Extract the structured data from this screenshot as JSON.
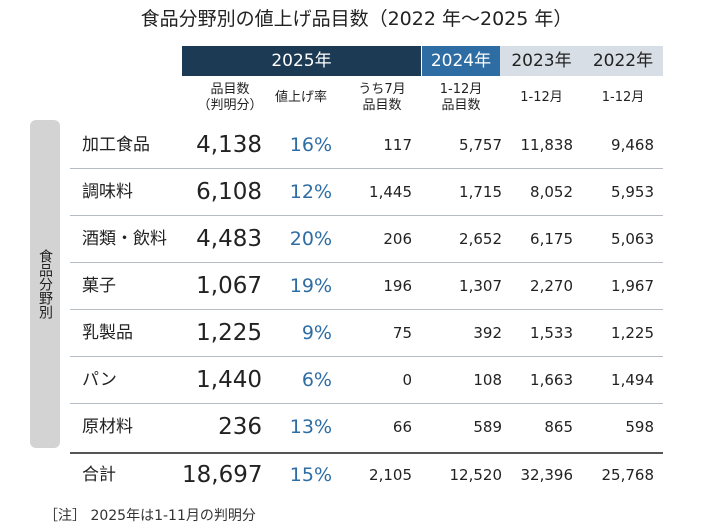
{
  "title": "食品分野別の値上げ品目数（2022 年～2025 年）",
  "chart_data": {
    "type": "table",
    "year_headers": [
      "2025年",
      "2024年",
      "2023年",
      "2022年"
    ],
    "columns": [
      {
        "line1": "品目数",
        "line2": "（判明分）"
      },
      {
        "line1": "値上げ率",
        "line2": ""
      },
      {
        "line1": "うち7月",
        "line2": "品目数"
      },
      {
        "line1": "1-12月",
        "line2": "品目数"
      },
      {
        "line1": "1-12月",
        "line2": ""
      },
      {
        "line1": "1-12月",
        "line2": ""
      }
    ],
    "side_label": "食品分野別",
    "rows": [
      {
        "category": "加工食品",
        "count_2025": "4,138",
        "rate_2025": "16%",
        "july_2025": "117",
        "total_2024": "5,757",
        "total_2023": "11,838",
        "total_2022": "9,468"
      },
      {
        "category": "調味料",
        "count_2025": "6,108",
        "rate_2025": "12%",
        "july_2025": "1,445",
        "total_2024": "1,715",
        "total_2023": "8,052",
        "total_2022": "5,953"
      },
      {
        "category": "酒類・飲料",
        "count_2025": "4,483",
        "rate_2025": "20%",
        "july_2025": "206",
        "total_2024": "2,652",
        "total_2023": "6,175",
        "total_2022": "5,063"
      },
      {
        "category": "菓子",
        "count_2025": "1,067",
        "rate_2025": "19%",
        "july_2025": "196",
        "total_2024": "1,307",
        "total_2023": "2,270",
        "total_2022": "1,967"
      },
      {
        "category": "乳製品",
        "count_2025": "1,225",
        "rate_2025": "9%",
        "july_2025": "75",
        "total_2024": "392",
        "total_2023": "1,533",
        "total_2022": "1,225"
      },
      {
        "category": "パン",
        "count_2025": "1,440",
        "rate_2025": "6%",
        "july_2025": "0",
        "total_2024": "108",
        "total_2023": "1,663",
        "total_2022": "1,494"
      },
      {
        "category": "原材料",
        "count_2025": "236",
        "rate_2025": "13%",
        "july_2025": "66",
        "total_2024": "589",
        "total_2023": "865",
        "total_2022": "598"
      }
    ],
    "total": {
      "category": "合計",
      "count_2025": "18,697",
      "rate_2025": "15%",
      "july_2025": "2,105",
      "total_2024": "12,520",
      "total_2023": "32,396",
      "total_2022": "25,768"
    }
  },
  "note": "［注］ 2025年は1-11月の判明分",
  "colors": {
    "header_2025": "#1c3a54",
    "header_2024": "#2e6da4",
    "header_past": "#d7dee5",
    "rate_text": "#2e6da4",
    "side_label_bg": "#d3d3d3"
  }
}
